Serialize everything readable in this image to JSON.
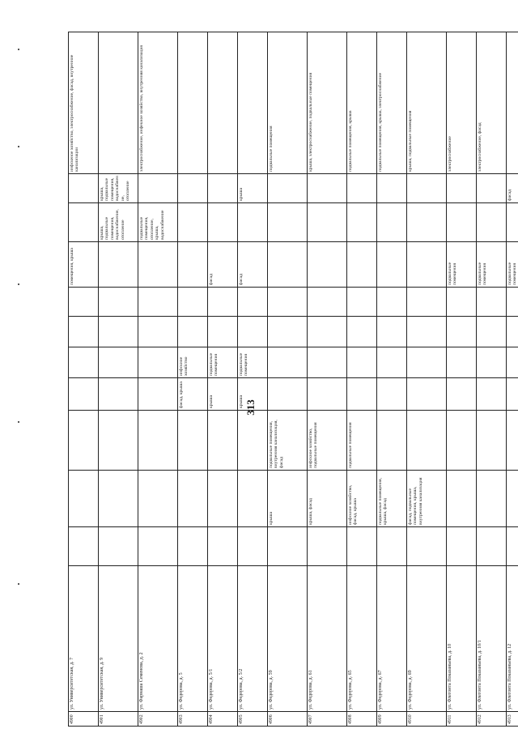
{
  "page": {
    "number": "313"
  },
  "rows": [
    {
      "num": "4900",
      "addr": "ул. Университетская, д. 7",
      "c": [
        "",
        "",
        "",
        "",
        "",
        "",
        "",
        "помещения, крыша",
        "",
        "",
        "инфскеное хозяйство, электроснабжение, фасад, внутренние канализации"
      ]
    },
    {
      "num": "4901",
      "addr": "ул. Университетская, д. 9",
      "c": [
        "",
        "",
        "",
        "",
        "",
        "",
        "",
        "",
        "крыша, подвальные помещения, водоснабжение, отопление",
        "крыша, подвальные помещения, водоснабжение, отопление",
        ""
      ]
    },
    {
      "num": "4902",
      "addr": "ул. Фарнаша Семенова, д. 2",
      "c": [
        "",
        "",
        "",
        "",
        "",
        "",
        "",
        "",
        "подвальные помещения, отопление, крыша, водоснабжение",
        "",
        "электроснабжение, инфекное хозяйство, внутренняя канализация"
      ]
    },
    {
      "num": "4903",
      "addr": "ул. Федорова, д. 5",
      "c": [
        "",
        "",
        "",
        "фасад, крыша",
        "инфскное хозяйство",
        "",
        "",
        "",
        "",
        "",
        ""
      ]
    },
    {
      "num": "4904",
      "addr": "ул. Федорова, д. 5/1",
      "c": [
        "",
        "",
        "",
        "крыша",
        "подвальные помещения",
        "",
        "",
        "фасад",
        "",
        "",
        ""
      ]
    },
    {
      "num": "4905",
      "addr": "ул. Федорова, д. 5/2",
      "c": [
        "",
        "",
        "",
        "крыша",
        "подвальные помещения",
        "",
        "",
        "фасад",
        "",
        "крыша",
        ""
      ]
    },
    {
      "num": "4906",
      "addr": "ул. Федорова, д. 59",
      "c": [
        "",
        "крыша",
        "подвальные помещения, внутренняя канализация, фасад",
        "",
        "",
        "",
        "",
        "",
        "",
        "",
        "подвальные помещения"
      ]
    },
    {
      "num": "4907",
      "addr": "ул. Федорова, д. 61",
      "c": [
        "",
        "крыша, фасад",
        "инфскное хозяйство, подвальные помещения",
        "",
        "",
        "",
        "",
        "",
        "",
        "",
        "крыша, электроснабжение, подвальные помещения"
      ]
    },
    {
      "num": "4908",
      "addr": "ул. Федорова, д. 65",
      "c": [
        "",
        "инфскное хозяйство, фасад, крыша",
        "подвальные помещения",
        "",
        "",
        "",
        "",
        "",
        "",
        "",
        "подвальные помещения, крыша"
      ]
    },
    {
      "num": "4909",
      "addr": "ул. Федорова, д. 67",
      "c": [
        "",
        "подвальные помещения, крыша, фасад",
        "",
        "",
        "",
        "",
        "",
        "",
        "",
        "",
        "подвальные помещения, крыша, электроснабжение"
      ]
    },
    {
      "num": "4910",
      "addr": "ул. Федорова, д. 69",
      "c": [
        "",
        "фасад, подвальные помещения, крыша, внутренняя канализация",
        "",
        "",
        "",
        "",
        "",
        "",
        "",
        "",
        "крыша, подвальные помещения"
      ]
    },
    {
      "num": "4911",
      "addr": "ул. Флегонта Показаньева, д. 10",
      "c": [
        "",
        "",
        "",
        "",
        "",
        "",
        "",
        "подвальные помещения",
        "",
        "",
        "электроснабжение"
      ]
    },
    {
      "num": "4912",
      "addr": "ул. Флегонта Показаньева, д. 10/1",
      "c": [
        "",
        "",
        "",
        "",
        "",
        "",
        "",
        "подвальные помещения",
        "",
        "",
        "электроснабжение, фасад"
      ]
    },
    {
      "num": "4913",
      "addr": "ул. Флегонта Показаньева, д. 12",
      "c": [
        "",
        "",
        "",
        "",
        "",
        "",
        "",
        "подвальные помещения",
        "",
        "фасад",
        ""
      ]
    },
    {
      "num": "4914",
      "addr": "ул. Флегонта Показаньева, д. 4",
      "c": [
        "",
        "",
        "",
        "",
        "",
        "",
        "",
        "отопление, газ. хозяйство, крыша",
        "",
        "внутренняя канализация, фасад, инфскное хозяйство",
        ""
      ]
    },
    {
      "num": "4915",
      "addr": "ул. Флегонта Показаньева, д. 6",
      "c": [
        "",
        "",
        "",
        "",
        "",
        "",
        "",
        "крыша, водоснабжение, отопление",
        "",
        "внутренняя канализация, электроснабжение, фасад",
        ""
      ]
    },
    {
      "num": "4916",
      "addr": "ул. Чехова, д. 1",
      "c": [
        "",
        "",
        "",
        "",
        "",
        "",
        "",
        "крыша, отопление, водоснабжение",
        "",
        "фасад, внутренняя канализация",
        "крыша"
      ]
    },
    {
      "num": "4917",
      "addr": "ул. Чехова, д. 10",
      "c": [
        "",
        "",
        "",
        "",
        "",
        "водоснабжение, крыша, подвальные помещения, отопление",
        "инфскное хозяйство, электроснабжение, внутренняя канализация",
        "",
        "",
        "крыша",
        ""
      ]
    },
    {
      "num": "4918",
      "addr": "ул. Чехова, д. 10/1",
      "c": [
        "",
        "",
        "",
        "",
        "",
        "водоснабжение",
        "внутренняя",
        "",
        "",
        "",
        ""
      ]
    }
  ]
}
